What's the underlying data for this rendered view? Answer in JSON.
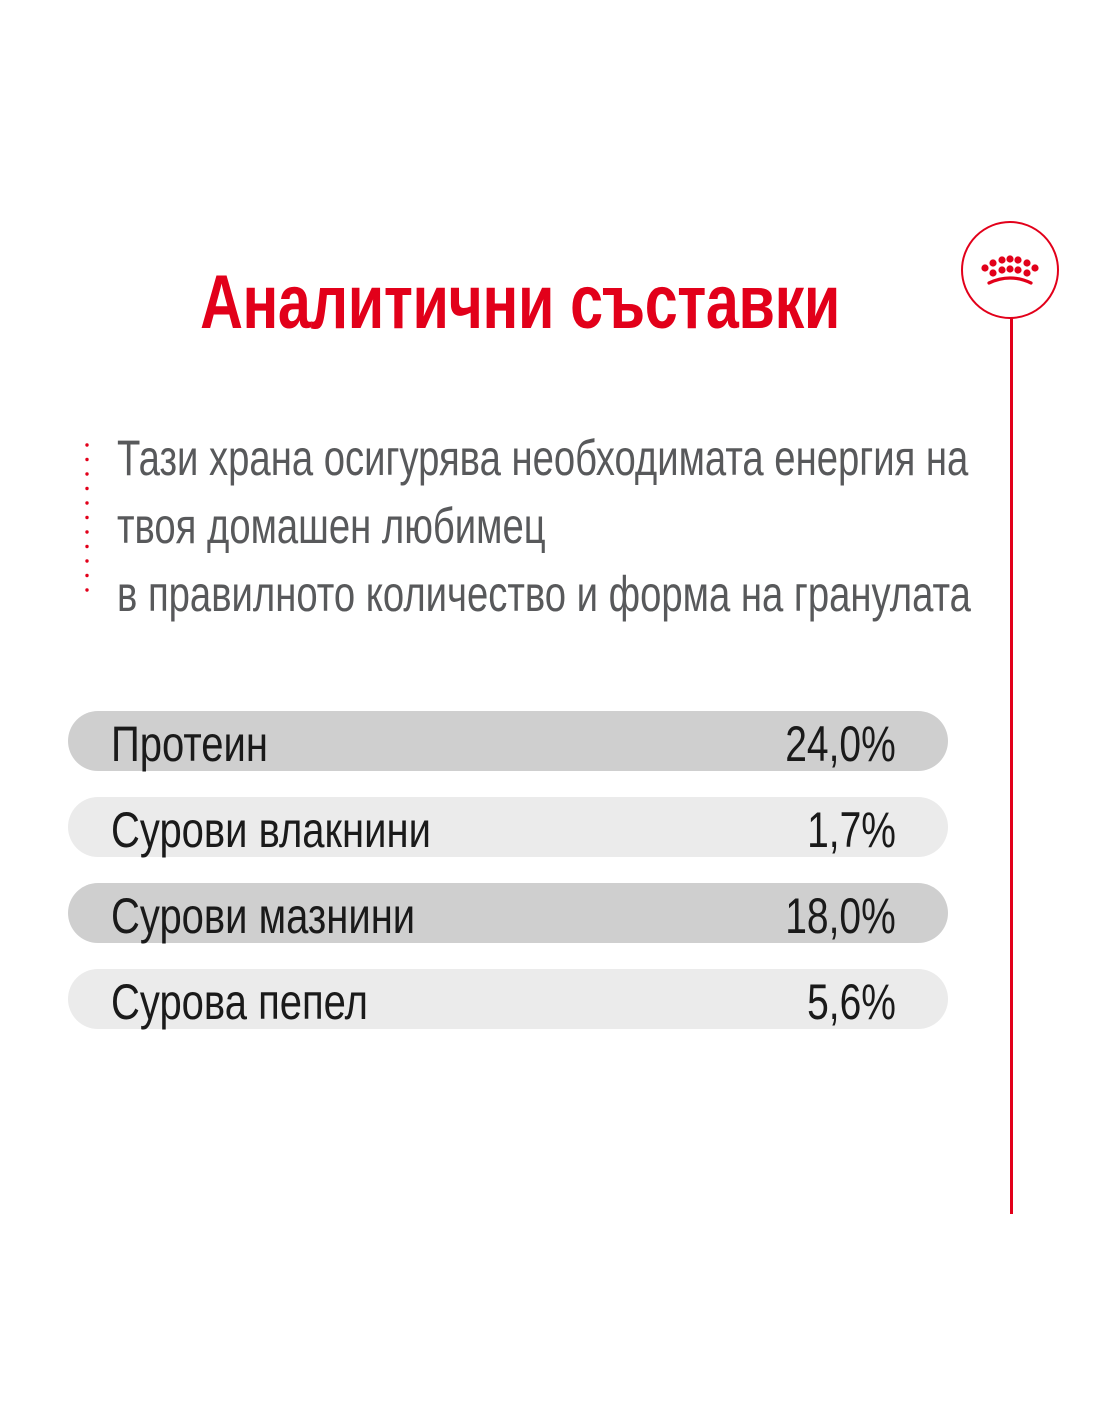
{
  "title": "Аналитични съставки",
  "intro": {
    "lines": [
      "Тази храна осигурява необходимата енергия на",
      "твоя домашен любимец",
      "в правилното количество и форма на гранулата"
    ]
  },
  "nutrients": [
    {
      "label": "Протеин",
      "value": "24,0%"
    },
    {
      "label": "Сурови влакнини",
      "value": "1,7%"
    },
    {
      "label": "Сурови мазнини",
      "value": "18,0%"
    },
    {
      "label": "Сурова пепел",
      "value": "5,6%"
    }
  ],
  "logo": {
    "icon": "crown-icon"
  },
  "colors": {
    "brand_red": "#e2001a",
    "body_text": "#58595b",
    "row_dark": "#cfcfcf",
    "row_light": "#ebebeb"
  }
}
